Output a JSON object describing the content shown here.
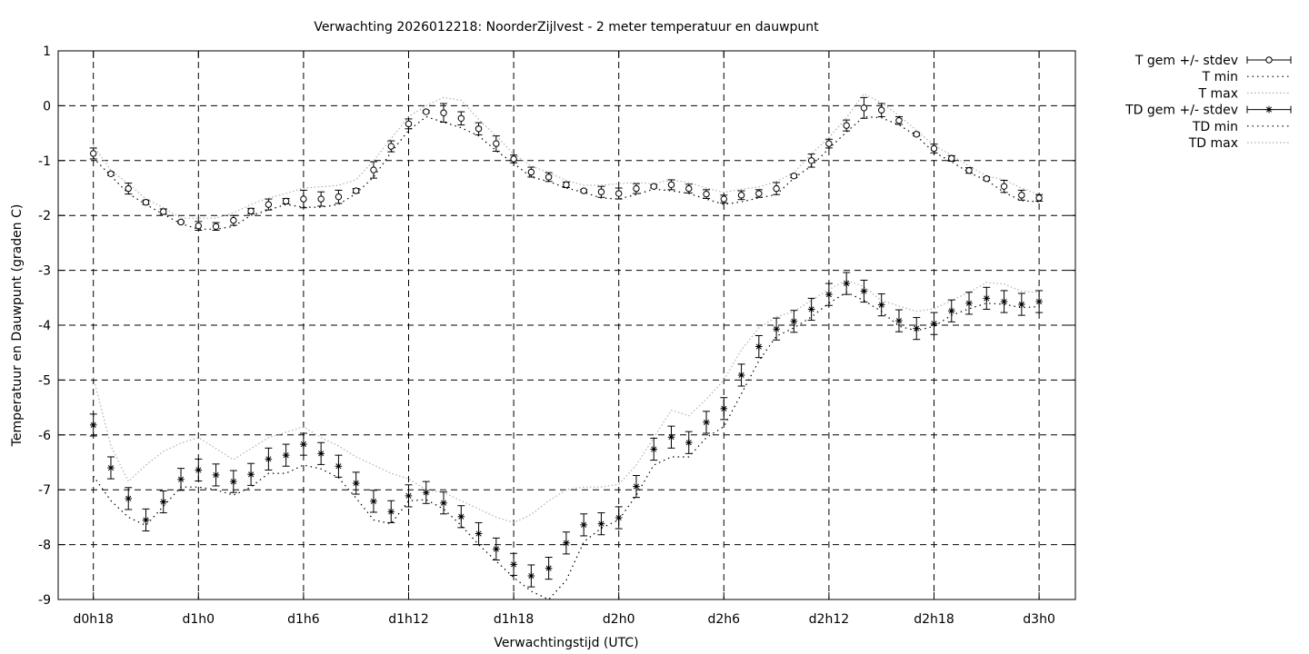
{
  "chart_data": {
    "type": "line",
    "title": "Verwachting 2026012218: NoorderZijlvest - 2 meter temperatuur en dauwpunt",
    "xlabel": "Verwachtingstijd (UTC)",
    "ylabel": "Temperatuur en Dauwpunt (graden C)",
    "xlim": [
      0,
      54
    ],
    "ylim": [
      -9,
      1
    ],
    "x_ticks": [
      {
        "x": 0,
        "label": "d0h18"
      },
      {
        "x": 6,
        "label": "d1h0"
      },
      {
        "x": 12,
        "label": "d1h6"
      },
      {
        "x": 18,
        "label": "d1h12"
      },
      {
        "x": 24,
        "label": "d1h18"
      },
      {
        "x": 30,
        "label": "d2h0"
      },
      {
        "x": 36,
        "label": "d2h6"
      },
      {
        "x": 42,
        "label": "d2h12"
      },
      {
        "x": 48,
        "label": "d2h18"
      },
      {
        "x": 54,
        "label": "d3h0"
      }
    ],
    "y_ticks": [
      1,
      0,
      -1,
      -2,
      -3,
      -4,
      -5,
      -6,
      -7,
      -8,
      -9
    ],
    "grid": true,
    "legend_position": "top-right (outside plot)",
    "x_hours_after_first": [
      0,
      1,
      2,
      3,
      4,
      5,
      6,
      7,
      8,
      9,
      10,
      11,
      12,
      13,
      14,
      15,
      16,
      17,
      18,
      19,
      20,
      21,
      22,
      23,
      24,
      25,
      26,
      27,
      28,
      29,
      30,
      31,
      32,
      33,
      34,
      35,
      36,
      37,
      38,
      39,
      40,
      41,
      42,
      43,
      44,
      45,
      46,
      47,
      48,
      49,
      50,
      51,
      52,
      53,
      54
    ],
    "series": [
      {
        "name": "T gem +/- stdev",
        "marker": "circle",
        "values": [
          -0.87,
          -1.24,
          -1.51,
          -1.76,
          -1.93,
          -2.12,
          -2.19,
          -2.2,
          -2.09,
          -1.92,
          -1.8,
          -1.74,
          -1.7,
          -1.7,
          -1.66,
          -1.55,
          -1.17,
          -0.74,
          -0.33,
          -0.11,
          -0.13,
          -0.23,
          -0.42,
          -0.69,
          -0.97,
          -1.21,
          -1.3,
          -1.44,
          -1.55,
          -1.57,
          -1.6,
          -1.51,
          -1.47,
          -1.44,
          -1.51,
          -1.61,
          -1.7,
          -1.63,
          -1.6,
          -1.51,
          -1.28,
          -1.0,
          -0.69,
          -0.36,
          -0.04,
          -0.08,
          -0.27,
          -0.52,
          -0.78,
          -0.96,
          -1.18,
          -1.33,
          -1.47,
          -1.63,
          -1.68
        ],
        "stdev": [
          0.1,
          0.03,
          0.1,
          0.04,
          0.05,
          0.02,
          0.08,
          0.07,
          0.09,
          0.05,
          0.1,
          0.05,
          0.16,
          0.13,
          0.12,
          0.04,
          0.15,
          0.1,
          0.09,
          0.02,
          0.17,
          0.12,
          0.11,
          0.14,
          0.07,
          0.09,
          0.08,
          0.05,
          0.02,
          0.1,
          0.1,
          0.09,
          0.03,
          0.09,
          0.08,
          0.08,
          0.07,
          0.08,
          0.07,
          0.11,
          0.03,
          0.12,
          0.08,
          0.1,
          0.19,
          0.12,
          0.07,
          0.03,
          0.08,
          0.05,
          0.05,
          0.03,
          0.11,
          0.09,
          0.06
        ]
      },
      {
        "name": "T min",
        "style": "dotted",
        "color": "#000000",
        "values": [
          -0.95,
          -1.28,
          -1.6,
          -1.8,
          -1.98,
          -2.15,
          -2.25,
          -2.25,
          -2.2,
          -2.0,
          -1.9,
          -1.8,
          -1.85,
          -1.85,
          -1.8,
          -1.6,
          -1.3,
          -0.85,
          -0.45,
          -0.2,
          -0.3,
          -0.4,
          -0.55,
          -0.82,
          -1.05,
          -1.3,
          -1.38,
          -1.5,
          -1.58,
          -1.68,
          -1.7,
          -1.62,
          -1.52,
          -1.55,
          -1.6,
          -1.7,
          -1.8,
          -1.75,
          -1.68,
          -1.62,
          -1.32,
          -1.1,
          -0.78,
          -0.48,
          -0.2,
          -0.22,
          -0.35,
          -0.55,
          -0.85,
          -1.02,
          -1.22,
          -1.36,
          -1.58,
          -1.73,
          -1.75
        ]
      },
      {
        "name": "T max",
        "style": "dotted",
        "color": "#b0b0b0",
        "values": [
          -0.72,
          -1.18,
          -1.42,
          -1.7,
          -1.86,
          -2.05,
          -2.05,
          -2.05,
          -1.95,
          -1.8,
          -1.68,
          -1.6,
          -1.5,
          -1.48,
          -1.45,
          -1.35,
          -1.0,
          -0.6,
          -0.2,
          0.0,
          0.15,
          0.1,
          -0.25,
          -0.55,
          -0.88,
          -1.1,
          -1.22,
          -1.36,
          -1.45,
          -1.45,
          -1.42,
          -1.4,
          -1.42,
          -1.35,
          -1.4,
          -1.5,
          -1.58,
          -1.52,
          -1.48,
          -1.38,
          -1.22,
          -0.88,
          -0.58,
          -0.22,
          0.22,
          0.05,
          -0.18,
          -0.45,
          -0.72,
          -0.9,
          -1.1,
          -1.28,
          -1.35,
          -1.5,
          -1.62
        ]
      },
      {
        "name": "TD gem +/- stdev",
        "marker": "star",
        "values": [
          -5.82,
          -6.6,
          -7.16,
          -7.55,
          -7.22,
          -6.81,
          -6.64,
          -6.73,
          -6.85,
          -6.72,
          -6.44,
          -6.37,
          -6.17,
          -6.34,
          -6.57,
          -6.88,
          -7.21,
          -7.4,
          -7.11,
          -7.05,
          -7.24,
          -7.49,
          -7.8,
          -8.08,
          -8.36,
          -8.57,
          -8.43,
          -7.97,
          -7.64,
          -7.62,
          -7.51,
          -6.94,
          -6.26,
          -6.04,
          -6.14,
          -5.77,
          -5.52,
          -4.91,
          -4.39,
          -4.07,
          -3.93,
          -3.71,
          -3.44,
          -3.24,
          -3.38,
          -3.63,
          -3.92,
          -4.06,
          -3.97,
          -3.74,
          -3.6,
          -3.51,
          -3.57,
          -3.62,
          -3.57
        ]
      },
      {
        "name": "TD min",
        "style": "dotted",
        "color": "#000000",
        "values": [
          -6.75,
          -7.2,
          -7.5,
          -7.65,
          -7.3,
          -6.95,
          -6.95,
          -7.0,
          -7.1,
          -6.95,
          -6.7,
          -6.7,
          -6.55,
          -6.62,
          -6.78,
          -7.15,
          -7.55,
          -7.62,
          -7.2,
          -7.18,
          -7.35,
          -7.65,
          -8.0,
          -8.3,
          -8.6,
          -8.85,
          -9.0,
          -8.65,
          -7.95,
          -7.7,
          -7.55,
          -7.1,
          -6.55,
          -6.4,
          -6.4,
          -6.05,
          -5.85,
          -5.25,
          -4.65,
          -4.2,
          -4.05,
          -3.85,
          -3.6,
          -3.4,
          -3.55,
          -3.75,
          -4.02,
          -4.1,
          -4.02,
          -3.82,
          -3.7,
          -3.6,
          -3.62,
          -3.68,
          -3.66
        ]
      },
      {
        "name": "TD max",
        "style": "dotted",
        "color": "#b0b0b0",
        "values": [
          -4.95,
          -6.2,
          -6.85,
          -6.55,
          -6.3,
          -6.15,
          -6.05,
          -6.25,
          -6.45,
          -6.25,
          -6.05,
          -5.95,
          -5.85,
          -6.05,
          -6.2,
          -6.4,
          -6.55,
          -6.7,
          -6.8,
          -7.0,
          -7.05,
          -7.2,
          -7.35,
          -7.5,
          -7.6,
          -7.45,
          -7.2,
          -7.0,
          -6.95,
          -6.95,
          -6.9,
          -6.55,
          -6.05,
          -5.55,
          -5.65,
          -5.35,
          -5.0,
          -4.45,
          -4.05,
          -3.85,
          -3.75,
          -3.55,
          -3.35,
          -3.18,
          -3.3,
          -3.55,
          -3.65,
          -3.75,
          -3.7,
          -3.55,
          -3.4,
          -3.22,
          -3.25,
          -3.38,
          -3.4
        ]
      }
    ]
  }
}
